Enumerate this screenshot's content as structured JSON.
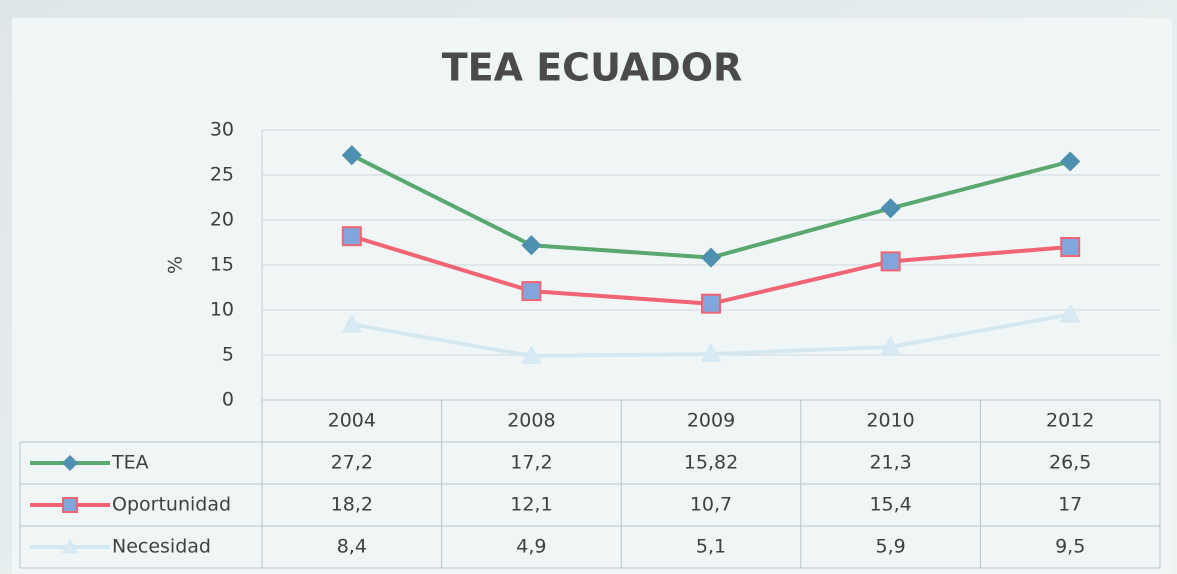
{
  "chart_data": {
    "type": "line",
    "title": "TEA ECUADOR",
    "y_label": "%",
    "categories": [
      "2004",
      "2008",
      "2009",
      "2010",
      "2012"
    ],
    "series": [
      {
        "name": "TEA",
        "color": "#5aa870",
        "marker": "diamond",
        "marker_color": "#4f8fb0",
        "values": [
          27.2,
          17.2,
          15.82,
          21.3,
          26.5
        ],
        "value_labels": [
          "27,2",
          "17,2",
          "15,82",
          "21,3",
          "26,5"
        ]
      },
      {
        "name": "Oportunidad",
        "color": "#f06474",
        "marker": "square",
        "marker_color": "#82a6dc",
        "values": [
          18.2,
          12.1,
          10.7,
          15.4,
          17
        ],
        "value_labels": [
          "18,2",
          "12,1",
          "10,7",
          "15,4",
          "17"
        ]
      },
      {
        "name": "Necesidad",
        "color": "#d4e8f2",
        "marker": "triangle",
        "marker_color": "#d8eaf4",
        "values": [
          8.4,
          4.9,
          5.1,
          5.9,
          9.5
        ],
        "value_labels": [
          "8,4",
          "4,9",
          "5,1",
          "5,9",
          "9,5"
        ]
      }
    ],
    "ylim": [
      0,
      30
    ],
    "yticks": [
      0,
      5,
      10,
      15,
      20,
      25,
      30
    ],
    "grid": true
  }
}
